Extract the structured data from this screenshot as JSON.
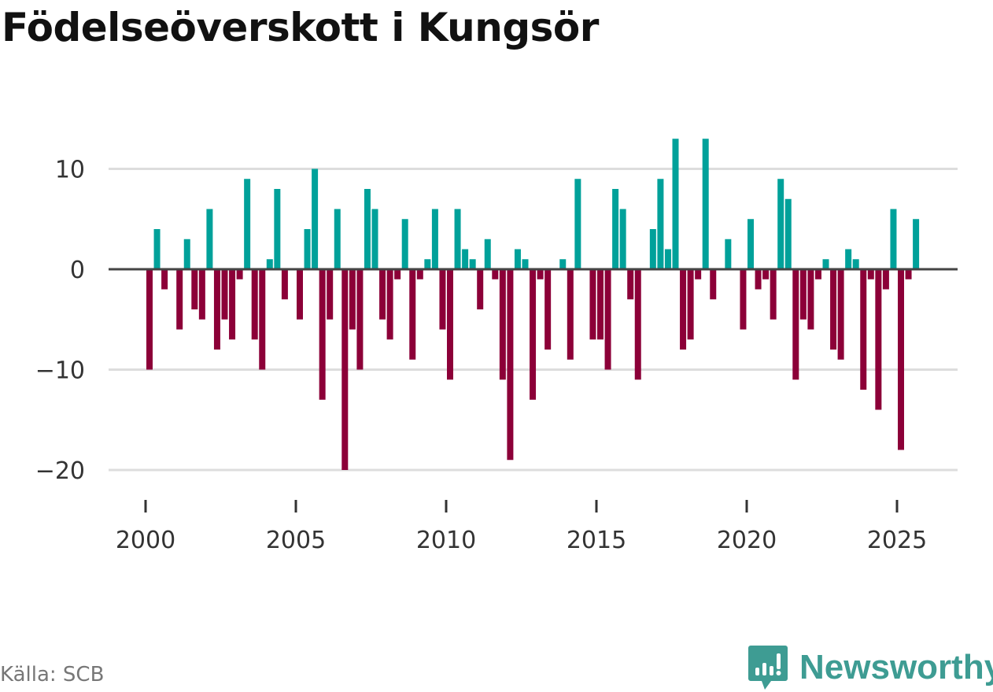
{
  "title": "Födelseöverskott i Kungsör",
  "source": "Källa: SCB",
  "brand": "Newsworthy",
  "colors": {
    "positive": "#00a19a",
    "negative": "#8c0038",
    "grid": "#dddddd",
    "zero": "#444444",
    "brand": "#3e9c93"
  },
  "chart_data": {
    "type": "bar",
    "title": "Födelseöverskott i Kungsör",
    "xlabel": "",
    "ylabel": "",
    "frequency": "quarterly",
    "start": "2000 Q1",
    "ylim": [
      -22,
      14
    ],
    "yticks": [
      10,
      0,
      -10,
      -20
    ],
    "ytick_labels": [
      "10",
      "0",
      "−10",
      "−20"
    ],
    "xticks": [
      2000,
      2005,
      2010,
      2015,
      2020,
      2025
    ],
    "xtick_labels": [
      "2000",
      "2005",
      "2010",
      "2015",
      "2020",
      "2025"
    ],
    "grid": true,
    "values": [
      -10,
      4,
      -2,
      0,
      -6,
      3,
      -4,
      -5,
      6,
      -8,
      -5,
      -7,
      -1,
      9,
      -7,
      -10,
      1,
      8,
      -3,
      0,
      -5,
      4,
      10,
      -13,
      -5,
      6,
      -20,
      -6,
      -10,
      8,
      6,
      -5,
      -7,
      -1,
      5,
      -9,
      -1,
      1,
      6,
      -6,
      -11,
      6,
      2,
      1,
      -4,
      3,
      -1,
      -11,
      -19,
      2,
      1,
      -13,
      -1,
      -8,
      0,
      1,
      -9,
      9,
      0,
      -7,
      -7,
      -10,
      8,
      6,
      -3,
      -11,
      0,
      4,
      9,
      2,
      13,
      -8,
      -7,
      -1,
      13,
      -3,
      0,
      3,
      0,
      -6,
      5,
      -2,
      -1,
      -5,
      9,
      7,
      -11,
      -5,
      -6,
      -1,
      1,
      -8,
      -9,
      2,
      1,
      -12,
      -1,
      -14,
      -2,
      6,
      -18,
      -1,
      5
    ]
  }
}
